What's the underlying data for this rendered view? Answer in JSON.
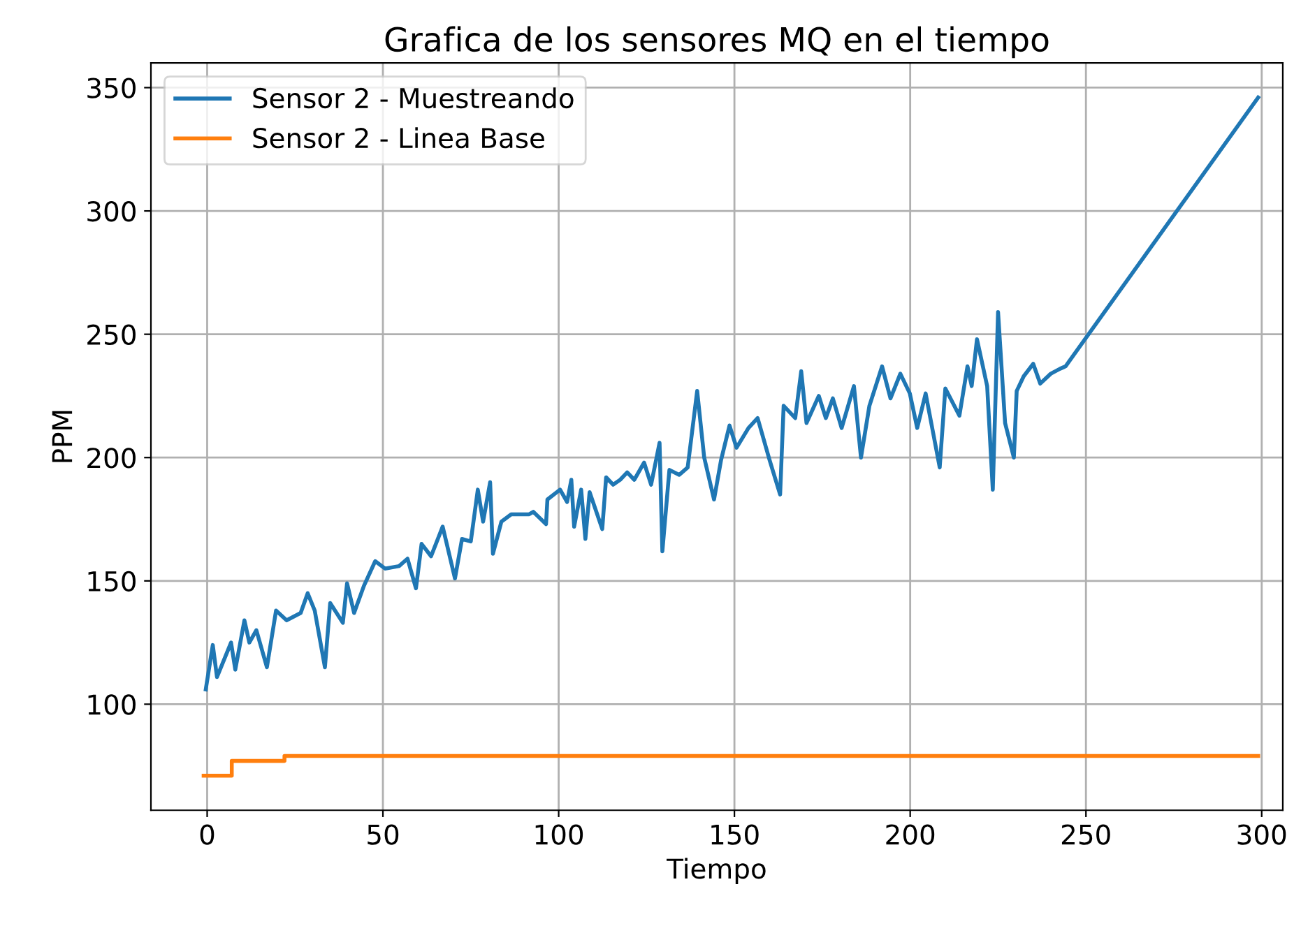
{
  "chart_data": {
    "type": "line",
    "title": "Grafica de los sensores MQ en el tiempo",
    "xlabel": "Tiempo",
    "ylabel": "PPM",
    "xlim": [
      -16,
      306
    ],
    "ylim": [
      57,
      360
    ],
    "xticks": [
      0,
      50,
      100,
      150,
      200,
      250,
      300
    ],
    "yticks": [
      100,
      150,
      200,
      250,
      300,
      350
    ],
    "grid": true,
    "legend": "top left",
    "series": [
      {
        "name": "Sensor 2 - Muestreando",
        "color": "#1f77b4",
        "x": [
          -0.4,
          1.6,
          2.8,
          6.8,
          8,
          10.6,
          12,
          14,
          17,
          19.6,
          22.6,
          26.6,
          28.6,
          30.6,
          33.5,
          35,
          38.6,
          39.8,
          41.8,
          44.6,
          47.8,
          50.6,
          54.6,
          57,
          59.4,
          61,
          63.7,
          67,
          70.5,
          72.5,
          75,
          77,
          78.5,
          80.5,
          81.3,
          83.7,
          86.5,
          91.6,
          92.8,
          96.4,
          96.8,
          100.4,
          102.4,
          103.6,
          104.4,
          106.4,
          107.6,
          108.8,
          112.4,
          113.5,
          115.5,
          117.5,
          119.5,
          121.5,
          124.3,
          126.3,
          128.7,
          129.5,
          131.5,
          134.3,
          136.7,
          139.4,
          141.4,
          144.2,
          146.2,
          148.6,
          150.6,
          154,
          156.6,
          160,
          163,
          164,
          167.3,
          169,
          170.5,
          174,
          176,
          178,
          180.5,
          184,
          186,
          188.4,
          192,
          194.4,
          197.2,
          199.9,
          202,
          204.4,
          208.4,
          210,
          214,
          216.3,
          217.5,
          219,
          221.9,
          223.5,
          225,
          227,
          229.5,
          230.3,
          232.3,
          235,
          237,
          240,
          242.6,
          244.2,
          299
        ],
        "values": [
          106,
          124,
          111,
          125,
          114,
          134,
          125,
          130,
          115,
          138,
          134,
          137,
          145,
          138,
          115,
          141,
          133,
          149,
          137,
          148,
          158,
          155,
          156,
          159,
          147,
          165,
          160,
          172,
          151,
          167,
          166,
          187,
          174,
          190,
          161,
          174,
          177,
          177,
          178,
          173,
          183,
          187,
          182,
          191,
          172,
          187,
          167,
          186,
          171,
          192,
          189,
          191,
          194,
          191,
          198,
          189,
          206,
          162,
          195,
          193,
          196,
          227,
          200,
          183,
          199,
          213,
          204,
          212,
          216,
          199,
          185,
          221,
          216,
          235,
          214,
          225,
          216,
          224,
          212,
          229,
          200,
          221,
          237,
          224,
          234,
          226,
          212,
          226,
          196,
          228,
          217,
          237,
          229,
          248,
          229,
          187,
          259,
          214,
          200,
          227,
          233,
          238,
          230,
          234,
          236,
          237,
          346
        ]
      },
      {
        "name": "Sensor 2 - Linea Base",
        "color": "#ff7f0e",
        "type": "step",
        "x": [
          -1,
          7,
          22,
          299
        ],
        "values": [
          71,
          77,
          79,
          79
        ]
      }
    ]
  }
}
